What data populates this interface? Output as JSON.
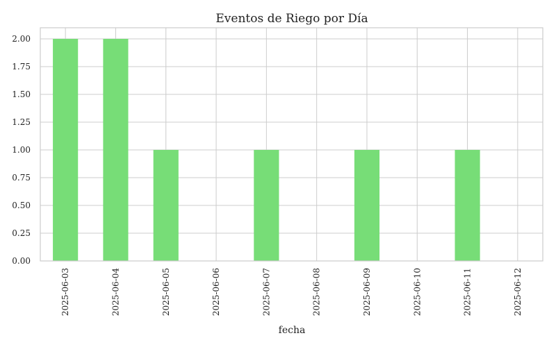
{
  "chart_data": {
    "type": "bar",
    "title": "Eventos de Riego por Día",
    "xlabel": "fecha",
    "ylabel": "",
    "categories": [
      "2025-06-03",
      "2025-06-04",
      "2025-06-05",
      "2025-06-06",
      "2025-06-07",
      "2025-06-08",
      "2025-06-09",
      "2025-06-10",
      "2025-06-11",
      "2025-06-12"
    ],
    "values": [
      2,
      2,
      1,
      0,
      1,
      0,
      1,
      0,
      1,
      0
    ],
    "ylim": [
      0,
      2.1
    ],
    "yticks": [
      "0.00",
      "0.25",
      "0.50",
      "0.75",
      "1.00",
      "1.25",
      "1.50",
      "1.75",
      "2.00"
    ],
    "grid": true,
    "legend": "none",
    "bar_color": "#77dd77"
  }
}
